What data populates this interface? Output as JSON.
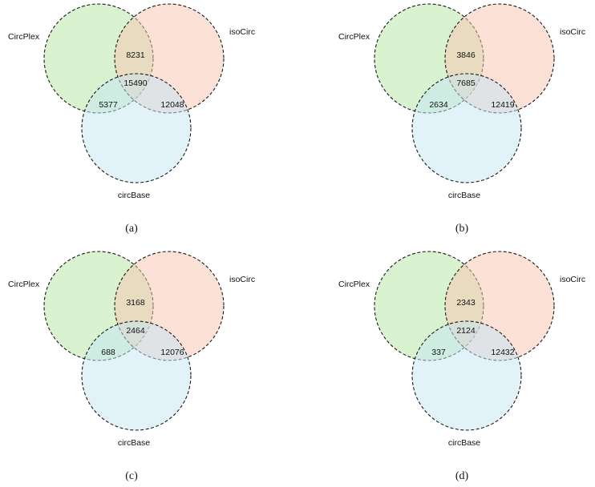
{
  "colors": {
    "CircPlex": "#b4e5a2",
    "isoCirc": "#f8c4ad",
    "circBase": "#c4e6f4",
    "stroke": "#1a1a1a",
    "text": "#111111"
  },
  "panels": [
    {
      "caption": "(a)",
      "sets": {
        "a": "CircPlex",
        "b": "isoCirc",
        "c": "circBase"
      },
      "regions": {
        "ab": "8231",
        "abc": "15490",
        "ac": "5377",
        "bc": "12048"
      }
    },
    {
      "caption": "(b)",
      "sets": {
        "a": "CircPlex",
        "b": "isoCirc",
        "c": "circBase"
      },
      "regions": {
        "ab": "3846",
        "abc": "7685",
        "ac": "2634",
        "bc": "12419"
      }
    },
    {
      "caption": "(c)",
      "sets": {
        "a": "CircPlex",
        "b": "isoCirc",
        "c": "circBase"
      },
      "regions": {
        "ab": "3168",
        "abc": "2464",
        "ac": "688",
        "bc": "12076"
      }
    },
    {
      "caption": "(d)",
      "sets": {
        "a": "CircPlex",
        "b": "isoCirc",
        "c": "circBase"
      },
      "regions": {
        "ab": "2343",
        "abc": "2124",
        "ac": "337",
        "bc": "12432"
      }
    }
  ]
}
